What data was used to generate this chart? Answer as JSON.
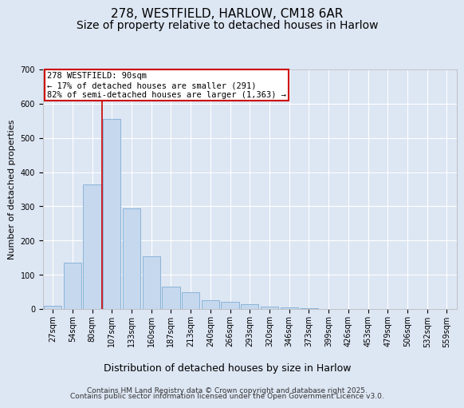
{
  "title_line1": "278, WESTFIELD, HARLOW, CM18 6AR",
  "title_line2": "Size of property relative to detached houses in Harlow",
  "xlabel": "Distribution of detached houses by size in Harlow",
  "ylabel": "Number of detached properties",
  "categories": [
    "27sqm",
    "54sqm",
    "80sqm",
    "107sqm",
    "133sqm",
    "160sqm",
    "187sqm",
    "213sqm",
    "240sqm",
    "266sqm",
    "293sqm",
    "320sqm",
    "346sqm",
    "373sqm",
    "399sqm",
    "426sqm",
    "453sqm",
    "479sqm",
    "506sqm",
    "532sqm",
    "559sqm"
  ],
  "values": [
    10,
    135,
    365,
    555,
    295,
    155,
    65,
    50,
    25,
    20,
    15,
    8,
    5,
    2,
    1,
    0,
    0,
    0,
    0,
    0,
    0
  ],
  "bar_color": "#c5d8ee",
  "bar_edge_color": "#8ab4d8",
  "red_line_index": 2.5,
  "annotation_text_line1": "278 WESTFIELD: 90sqm",
  "annotation_text_line2": "← 17% of detached houses are smaller (291)",
  "annotation_text_line3": "82% of semi-detached houses are larger (1,363) →",
  "annotation_box_facecolor": "#ffffff",
  "annotation_box_edgecolor": "#cc0000",
  "ylim": [
    0,
    700
  ],
  "yticks": [
    0,
    100,
    200,
    300,
    400,
    500,
    600,
    700
  ],
  "background_color": "#dde6f3",
  "plot_bg_color": "#dde6f3",
  "footer_line1": "Contains HM Land Registry data © Crown copyright and database right 2025.",
  "footer_line2": "Contains public sector information licensed under the Open Government Licence v3.0.",
  "grid_color": "#ffffff",
  "title1_fontsize": 11,
  "title2_fontsize": 10,
  "ylabel_fontsize": 8,
  "xlabel_fontsize": 9,
  "tick_fontsize": 7,
  "annot_fontsize": 7.5,
  "footer_fontsize": 6.5
}
